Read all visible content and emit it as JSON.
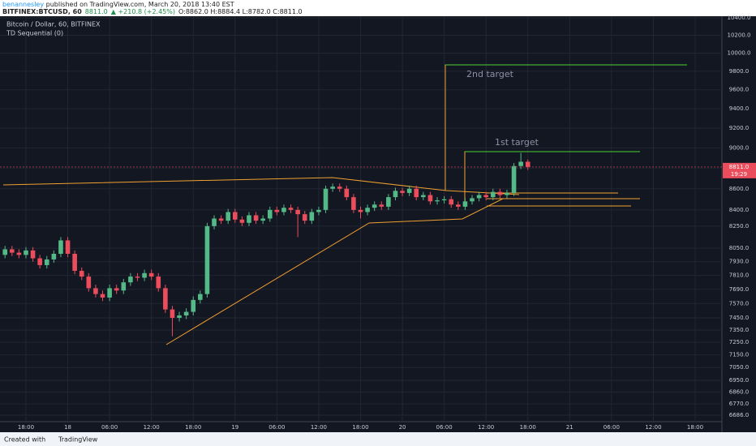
{
  "header": {
    "author": "benannesley",
    "published": " published on TradingView.com, March 20, 2018 13:40 EST",
    "symbol": "BITFINEX:BTCUSD, 60",
    "last": "8811.0",
    "change": "▲ +210.8 (+2.45%)",
    "ohlc": "O:8862.0 H:8884.4 L:8782.0 C:8811.0"
  },
  "footer": {
    "created": "Created with",
    "brand": "TradingView"
  },
  "chart_data": {
    "type": "candlestick",
    "log_scale": true,
    "grid": true,
    "legend": [
      "Bitcoin / Dollar, 60, BITFINEX",
      "TD Sequential (0)"
    ],
    "annotations": [
      "1st target",
      "2nd target"
    ],
    "last_price_label": "8811.0",
    "countdown": "19:29",
    "up_color": "#53b987",
    "down_color": "#eb4d5c",
    "categories": [
      null,
      null,
      null,
      "18:00",
      null,
      null,
      null,
      null,
      null,
      "18",
      null,
      null,
      null,
      null,
      null,
      "06:00",
      null,
      null,
      null,
      null,
      null,
      "12:00",
      null,
      null,
      null,
      null,
      null,
      "18:00",
      null,
      null,
      null,
      null,
      null,
      "19",
      null,
      null,
      null,
      null,
      null,
      "06:00",
      null,
      null,
      null,
      null,
      null,
      "12:00",
      null,
      null,
      null,
      null,
      null,
      "18:00",
      null,
      null,
      null,
      null,
      null,
      "20",
      null,
      null,
      null,
      null,
      null,
      "06:00",
      null,
      null,
      null,
      null,
      null,
      "12:00",
      null,
      null,
      null,
      null,
      null,
      "18:00",
      null,
      null,
      null,
      null,
      null,
      "21",
      null,
      null,
      null,
      null,
      null,
      "06:00",
      null,
      null,
      null,
      null,
      null,
      "12:00",
      null,
      null,
      null,
      null,
      null,
      "18:00"
    ],
    "open": [
      7990,
      8040,
      8010,
      7990,
      8030,
      7960,
      7900,
      7950,
      8000,
      8120,
      8000,
      7850,
      7800,
      7700,
      7650,
      7620,
      7700,
      7680,
      7750,
      7800,
      7790,
      7830,
      7800,
      7700,
      7520,
      7450,
      7470,
      7500,
      7600,
      7650,
      8250,
      8320,
      8300,
      8380,
      8310,
      8280,
      8350,
      8300,
      8320,
      8400,
      8380,
      8420,
      8400,
      8360,
      8300,
      8380,
      8400,
      8600,
      8620,
      8600,
      8520,
      8400,
      8380,
      8420,
      8450,
      8430,
      8520,
      8580,
      8560,
      8600,
      8520,
      8540,
      8480,
      8490,
      8500,
      8450,
      8430,
      8480,
      8510,
      8540,
      8520,
      8570,
      8540,
      8560,
      8820,
      8862,
      null,
      null,
      null,
      null,
      null,
      null,
      null,
      null,
      null,
      null,
      null,
      null,
      null,
      null,
      null,
      null,
      null,
      null,
      null,
      null,
      null,
      null,
      null,
      null
    ],
    "high": [
      8070,
      8070,
      8040,
      8060,
      8060,
      7990,
      7980,
      8030,
      8150,
      8150,
      8030,
      7880,
      7830,
      7730,
      7680,
      7730,
      7730,
      7780,
      7830,
      7830,
      7860,
      7860,
      7830,
      7730,
      7550,
      7500,
      7530,
      7630,
      7680,
      8280,
      8350,
      8350,
      8410,
      8410,
      8340,
      8380,
      8380,
      8350,
      8430,
      8430,
      8450,
      8450,
      8430,
      8390,
      8410,
      8430,
      8630,
      8650,
      8650,
      8630,
      8550,
      8430,
      8450,
      8480,
      8480,
      8550,
      8610,
      8610,
      8630,
      8630,
      8570,
      8570,
      8520,
      8530,
      8530,
      8480,
      8510,
      8540,
      8570,
      8570,
      8600,
      8600,
      8590,
      8850,
      8950,
      8884.4,
      null,
      null,
      null,
      null,
      null,
      null,
      null,
      null,
      null,
      null,
      null,
      null,
      null,
      null,
      null,
      null,
      null,
      null,
      null,
      null,
      null,
      null,
      null,
      null
    ],
    "low": [
      7960,
      7980,
      7960,
      7960,
      7930,
      7870,
      7870,
      7920,
      7970,
      7970,
      7820,
      7770,
      7670,
      7620,
      7590,
      7590,
      7650,
      7650,
      7720,
      7760,
      7760,
      7770,
      7670,
      7490,
      7300,
      7420,
      7440,
      7470,
      7570,
      7620,
      8220,
      8270,
      8270,
      8280,
      8250,
      8250,
      8270,
      8270,
      8290,
      8350,
      8350,
      8370,
      8150,
      8270,
      8270,
      8350,
      8370,
      8570,
      8570,
      8490,
      8370,
      8320,
      8350,
      8390,
      8400,
      8400,
      8490,
      8530,
      8530,
      8490,
      8490,
      8450,
      8450,
      8460,
      8420,
      8400,
      8400,
      8450,
      8480,
      8490,
      8490,
      8510,
      8510,
      8530,
      8790,
      8782,
      null,
      null,
      null,
      null,
      null,
      null,
      null,
      null,
      null,
      null,
      null,
      null,
      null,
      null,
      null,
      null,
      null,
      null,
      null,
      null,
      null,
      null,
      null,
      null
    ],
    "close": [
      8040,
      8010,
      7990,
      8030,
      7960,
      7900,
      7950,
      8000,
      8120,
      8000,
      7850,
      7800,
      7700,
      7650,
      7620,
      7700,
      7680,
      7750,
      7800,
      7790,
      7830,
      7800,
      7700,
      7520,
      7450,
      7470,
      7500,
      7600,
      7650,
      8250,
      8320,
      8300,
      8380,
      8310,
      8280,
      8350,
      8300,
      8320,
      8400,
      8380,
      8420,
      8400,
      8360,
      8300,
      8380,
      8400,
      8600,
      8620,
      8600,
      8520,
      8400,
      8380,
      8420,
      8450,
      8430,
      8520,
      8580,
      8560,
      8600,
      8520,
      8540,
      8480,
      8490,
      8500,
      8450,
      8430,
      8480,
      8510,
      8540,
      8520,
      8570,
      8540,
      8560,
      8820,
      8862,
      8811,
      null,
      null,
      null,
      null,
      null,
      null,
      null,
      null,
      null,
      null,
      null,
      null,
      null,
      null,
      null,
      null,
      null,
      null,
      null,
      null,
      null,
      null,
      null,
      null
    ],
    "ylim": [
      6638,
      10437
    ],
    "yticks": [
      {
        "value": 10400,
        "label": "10400.0"
      },
      {
        "value": 10200,
        "label": "10200.0"
      },
      {
        "value": 10000,
        "label": "10000.0"
      },
      {
        "value": 9800,
        "label": "9800.0"
      },
      {
        "value": 9600,
        "label": "9600.0"
      },
      {
        "value": 9400,
        "label": "9400.0"
      },
      {
        "value": 9200,
        "label": "9200.0"
      },
      {
        "value": 9000,
        "label": "9000.0"
      },
      {
        "value": 8800,
        "label": "8800.0"
      },
      {
        "value": 8600,
        "label": "8600.0"
      },
      {
        "value": 8400,
        "label": "8400.0"
      },
      {
        "value": 8250,
        "label": "8250.0"
      },
      {
        "value": 8050,
        "label": "8050.0"
      },
      {
        "value": 7930,
        "label": "7930.0"
      },
      {
        "value": 7810,
        "label": "7810.0"
      },
      {
        "value": 7690,
        "label": "7690.0"
      },
      {
        "value": 7570,
        "label": "7570.0"
      },
      {
        "value": 7450,
        "label": "7450.0"
      },
      {
        "value": 7350,
        "label": "7350.0"
      },
      {
        "value": 7250,
        "label": "7250.0"
      },
      {
        "value": 7150,
        "label": "7150.0"
      },
      {
        "value": 7050,
        "label": "7050.0"
      },
      {
        "value": 6950,
        "label": "6950.0"
      },
      {
        "value": 6860,
        "label": "6860.0"
      },
      {
        "value": 6770,
        "label": "6770.0"
      },
      {
        "value": 6686,
        "label": "6686.0"
      }
    ]
  }
}
